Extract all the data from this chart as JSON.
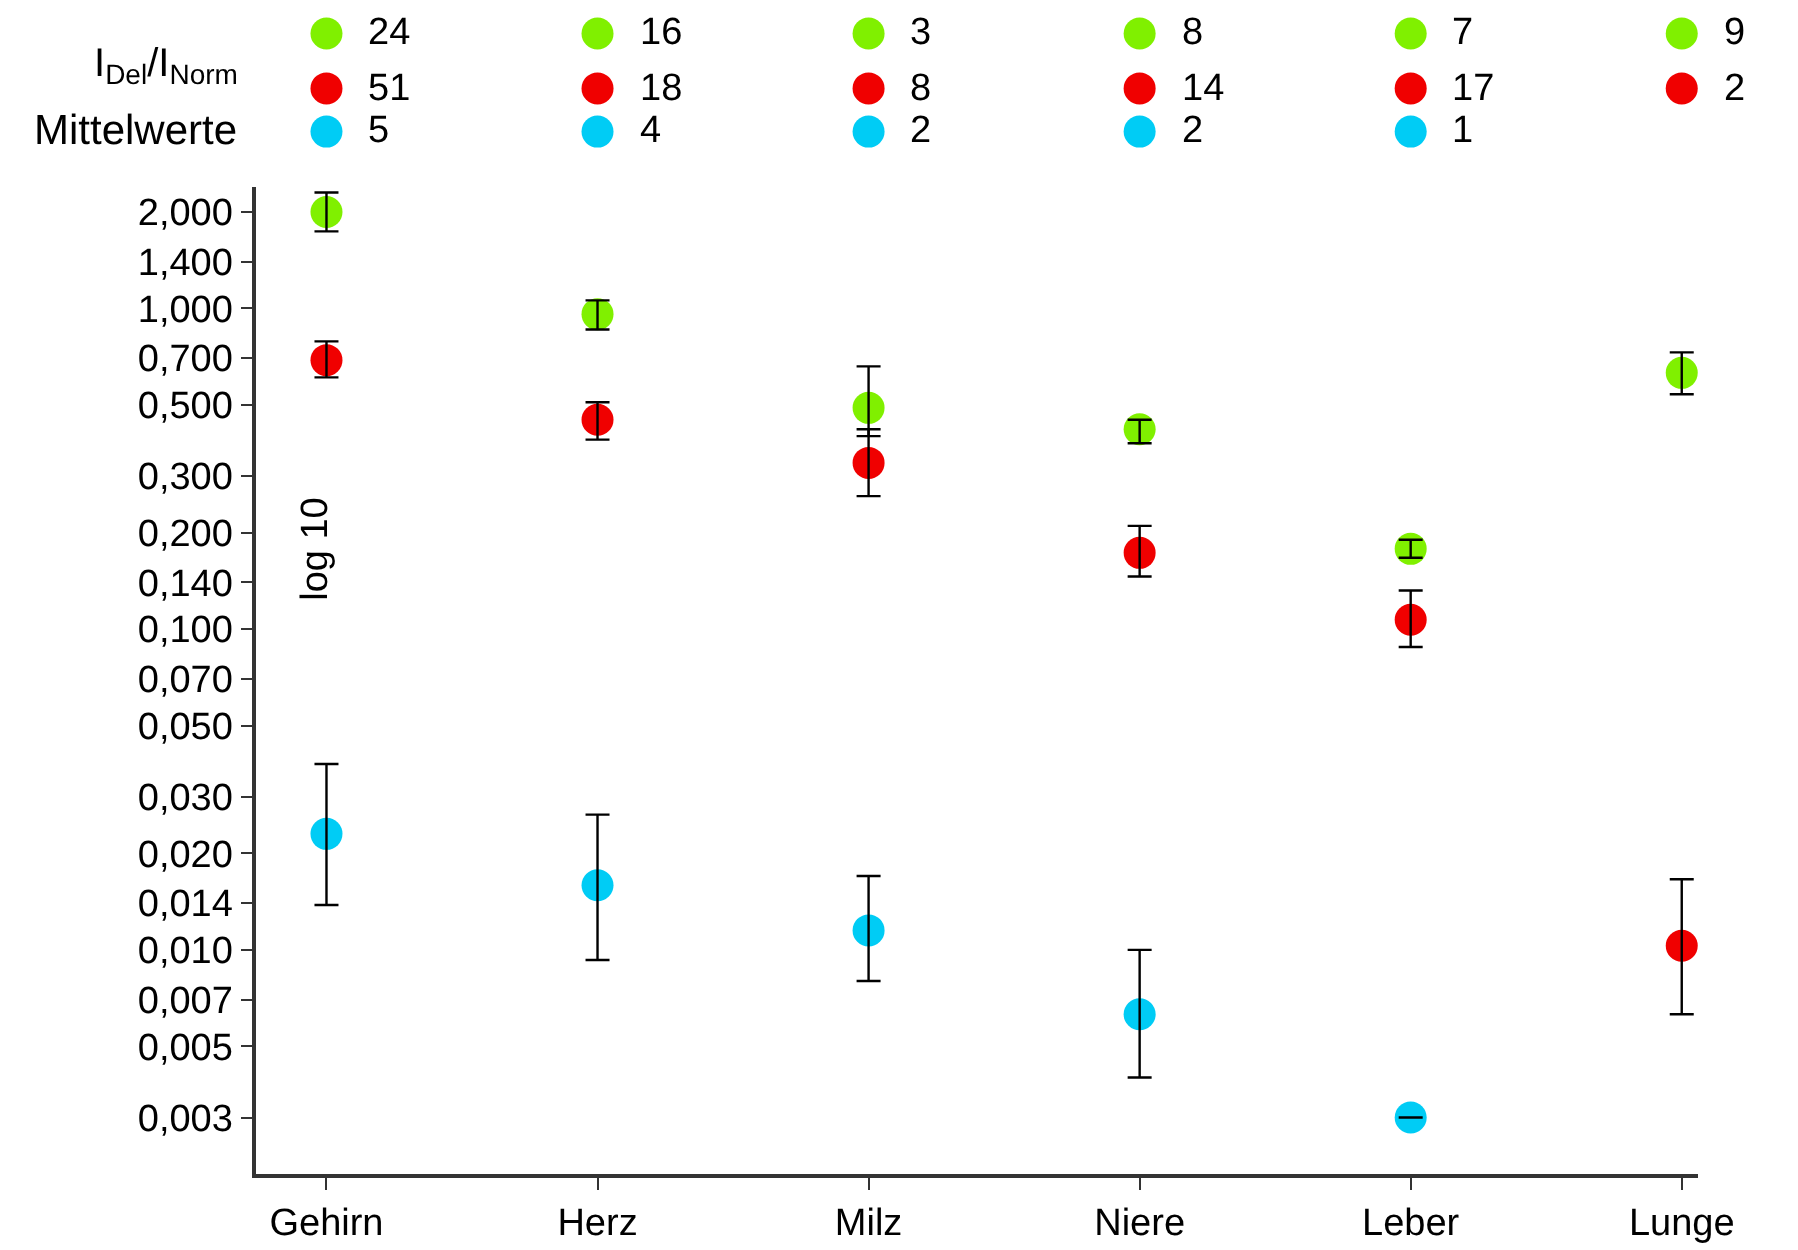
{
  "chart_data": {
    "type": "scatter",
    "categories": [
      "Gehirn",
      "Herz",
      "Milz",
      "Niere",
      "Leber",
      "Lunge"
    ],
    "ylabel": "log 10",
    "log": "y",
    "marker": "circle",
    "ylim": [
      0.002,
      2.4
    ],
    "yticks": [
      {
        "value": 0.003,
        "label": "0,003"
      },
      {
        "value": 0.005,
        "label": "0,005"
      },
      {
        "value": 0.007,
        "label": "0,007"
      },
      {
        "value": 0.01,
        "label": "0,010"
      },
      {
        "value": 0.014,
        "label": "0,014"
      },
      {
        "value": 0.02,
        "label": "0,020"
      },
      {
        "value": 0.03,
        "label": "0,030"
      },
      {
        "value": 0.05,
        "label": "0,050"
      },
      {
        "value": 0.07,
        "label": "0,070"
      },
      {
        "value": 0.1,
        "label": "0,100"
      },
      {
        "value": 0.14,
        "label": "0,140"
      },
      {
        "value": 0.2,
        "label": "0,200"
      },
      {
        "value": 0.3,
        "label": "0,300"
      },
      {
        "value": 0.5,
        "label": "0,500"
      },
      {
        "value": 0.7,
        "label": "0,700"
      },
      {
        "value": 1.0,
        "label": "1,000"
      },
      {
        "value": 1.4,
        "label": "1,400"
      },
      {
        "value": 2.0,
        "label": "2,000"
      }
    ],
    "series": [
      {
        "color": "#80f000",
        "values": [
          2.0,
          0.96,
          0.49,
          0.42,
          0.178,
          0.63
        ],
        "errors": [
          [
            1.74,
            2.3
          ],
          [
            0.86,
            1.06
          ],
          [
            0.4,
            0.66
          ],
          [
            0.38,
            0.45
          ],
          [
            0.167,
            0.19
          ],
          [
            0.54,
            0.73
          ]
        ]
      },
      {
        "color": "#f00000",
        "values": [
          0.69,
          0.45,
          0.33,
          0.173,
          0.107,
          0.0103
        ],
        "errors": [
          [
            0.61,
            0.79
          ],
          [
            0.39,
            0.51
          ],
          [
            0.26,
            0.42
          ],
          [
            0.146,
            0.21
          ],
          [
            0.088,
            0.132
          ],
          [
            0.0063,
            0.0166
          ]
        ]
      },
      {
        "color": "#00ccf5",
        "values": [
          0.023,
          0.0159,
          0.0115,
          0.0063,
          0.003,
          null
        ],
        "errors": [
          [
            0.0138,
            0.038
          ],
          [
            0.0093,
            0.0264
          ],
          [
            0.008,
            0.017
          ],
          [
            0.004,
            0.01
          ],
          null,
          null
        ]
      }
    ],
    "annotations": [
      "I$_{Del}$/I$_{Norm}$",
      "Mittelwerte",
      "24",
      "16",
      "3",
      "8",
      "7",
      "9",
      "51",
      "18",
      "8",
      "14",
      "17",
      "2",
      "5",
      "4",
      "2",
      "2",
      "1"
    ]
  }
}
